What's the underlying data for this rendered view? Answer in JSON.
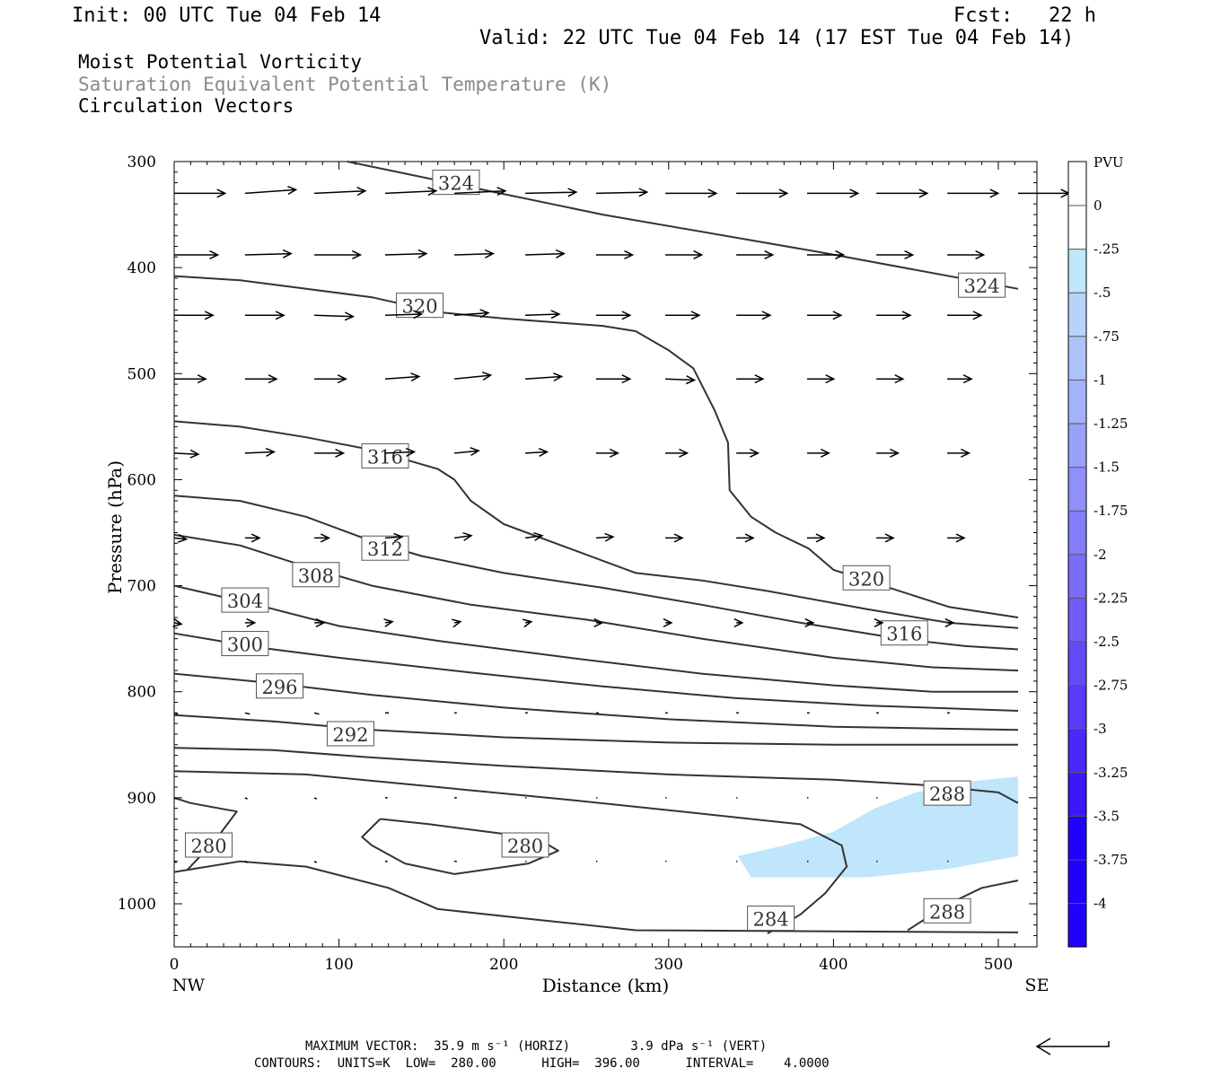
{
  "header": {
    "init": "Init: 00 UTC Tue 04 Feb 14",
    "fcst": "Fcst:   22 h",
    "valid": "Valid: 22 UTC Tue 04 Feb 14 (17 EST Tue 04 Feb 14)",
    "fields": [
      "Moist Potential Vorticity",
      "Saturation Equivalent Potential Temperature (K)",
      "Circulation Vectors"
    ]
  },
  "footer": {
    "max_vector": "MAXIMUM VECTOR:  35.9 m s⁻¹ (HORIZ)        3.9 dPa s⁻¹ (VERT)",
    "contours": "CONTOURS:  UNITS=K  LOW=  280.00      HIGH=  396.00      INTERVAL=    4.0000"
  },
  "colors": {
    "contour": "#333333",
    "pv_fill": "#bfe6fa",
    "scale": [
      "#ffffff",
      "#ffffff",
      "#bfe6fa",
      "#b6d4fa",
      "#adc3fa",
      "#a4b2fa",
      "#9aa1fa",
      "#8f90fa",
      "#847efa",
      "#7a6dfa",
      "#6f5cfa",
      "#644bfa",
      "#583afa",
      "#4b28fa",
      "#3d16fa",
      "#2000ff"
    ]
  },
  "chart_data": {
    "type": "cross-section contour",
    "xlabel": "Distance (km)",
    "ylabel": "Pressure (hPa)",
    "xlim": [
      0,
      512
    ],
    "ylim": [
      300,
      1030
    ],
    "y_inverted": true,
    "x_ticks": [
      0,
      100,
      200,
      300,
      400,
      500
    ],
    "y_ticks": [
      300,
      400,
      500,
      600,
      700,
      800,
      900,
      1000
    ],
    "x_end_labels": {
      "left": "NW",
      "right": "SE"
    },
    "colorbar": {
      "title": "PVU",
      "labels": [
        "0",
        "-.25",
        "-.5",
        "-.75",
        "-1",
        "-1.25",
        "-1.5",
        "-1.75",
        "-2",
        "-2.25",
        "-2.5",
        "-2.75",
        "-3",
        "-3.25",
        "-3.5",
        "-3.75",
        "-4"
      ]
    },
    "contour_units": "K",
    "contours": [
      {
        "level": 324,
        "points": [
          [
            105,
            300
          ],
          [
            260,
            350
          ],
          [
            390,
            385
          ],
          [
            512,
            420
          ]
        ]
      },
      {
        "level": 320,
        "points": [
          [
            0,
            408
          ],
          [
            40,
            412
          ],
          [
            80,
            420
          ],
          [
            120,
            428
          ],
          [
            160,
            442
          ],
          [
            200,
            448
          ],
          [
            260,
            455
          ],
          [
            280,
            460
          ],
          [
            300,
            478
          ],
          [
            315,
            495
          ],
          [
            328,
            535
          ],
          [
            336,
            565
          ],
          [
            337,
            610
          ],
          [
            350,
            635
          ],
          [
            365,
            650
          ],
          [
            385,
            665
          ],
          [
            400,
            685
          ],
          [
            430,
            700
          ],
          [
            470,
            720
          ],
          [
            512,
            730
          ]
        ]
      },
      {
        "level": 316,
        "points": [
          [
            0,
            545
          ],
          [
            40,
            550
          ],
          [
            80,
            560
          ],
          [
            120,
            572
          ],
          [
            160,
            590
          ],
          [
            170,
            600
          ],
          [
            180,
            620
          ],
          [
            200,
            642
          ],
          [
            240,
            665
          ],
          [
            280,
            688
          ],
          [
            320,
            695
          ],
          [
            360,
            705
          ],
          [
            420,
            722
          ],
          [
            470,
            735
          ],
          [
            512,
            740
          ]
        ]
      },
      {
        "level": 312,
        "points": [
          [
            0,
            615
          ],
          [
            40,
            620
          ],
          [
            80,
            635
          ],
          [
            120,
            658
          ],
          [
            150,
            672
          ],
          [
            200,
            688
          ],
          [
            260,
            702
          ],
          [
            320,
            718
          ],
          [
            380,
            735
          ],
          [
            440,
            750
          ],
          [
            480,
            757
          ],
          [
            512,
            760
          ]
        ]
      },
      {
        "level": 308,
        "points": [
          [
            0,
            652
          ],
          [
            40,
            662
          ],
          [
            80,
            682
          ],
          [
            120,
            700
          ],
          [
            180,
            718
          ],
          [
            250,
            732
          ],
          [
            320,
            750
          ],
          [
            400,
            768
          ],
          [
            460,
            777
          ],
          [
            512,
            780
          ]
        ]
      },
      {
        "level": 304,
        "points": [
          [
            0,
            700
          ],
          [
            50,
            718
          ],
          [
            100,
            738
          ],
          [
            160,
            752
          ],
          [
            240,
            768
          ],
          [
            320,
            783
          ],
          [
            400,
            794
          ],
          [
            460,
            800
          ],
          [
            512,
            800
          ]
        ]
      },
      {
        "level": 300,
        "points": [
          [
            0,
            745
          ],
          [
            50,
            758
          ],
          [
            100,
            768
          ],
          [
            180,
            782
          ],
          [
            260,
            795
          ],
          [
            340,
            806
          ],
          [
            420,
            813
          ],
          [
            512,
            818
          ]
        ]
      },
      {
        "level": 296,
        "points": [
          [
            0,
            783
          ],
          [
            60,
            792
          ],
          [
            120,
            803
          ],
          [
            200,
            815
          ],
          [
            300,
            826
          ],
          [
            400,
            833
          ],
          [
            512,
            836
          ]
        ]
      },
      {
        "level": 292,
        "points": [
          [
            0,
            822
          ],
          [
            60,
            828
          ],
          [
            120,
            836
          ],
          [
            200,
            843
          ],
          [
            300,
            848
          ],
          [
            400,
            850
          ],
          [
            512,
            850
          ]
        ]
      },
      {
        "level": 288,
        "points": [
          [
            0,
            853
          ],
          [
            60,
            855
          ],
          [
            120,
            862
          ],
          [
            200,
            870
          ],
          [
            300,
            878
          ],
          [
            400,
            883
          ],
          [
            455,
            888
          ],
          [
            500,
            895
          ],
          [
            512,
            905
          ]
        ]
      },
      {
        "level": 288,
        "points": [
          [
            445,
            1025
          ],
          [
            470,
            1000
          ],
          [
            490,
            985
          ],
          [
            512,
            978
          ]
        ]
      },
      {
        "level": 284,
        "points": [
          [
            0,
            875
          ],
          [
            80,
            878
          ],
          [
            160,
            890
          ],
          [
            240,
            902
          ],
          [
            320,
            915
          ],
          [
            380,
            925
          ],
          [
            405,
            945
          ],
          [
            408,
            965
          ],
          [
            395,
            990
          ],
          [
            380,
            1010
          ],
          [
            360,
            1028
          ]
        ]
      },
      {
        "level": 280,
        "points": [
          [
            0,
            970
          ],
          [
            40,
            960
          ],
          [
            80,
            965
          ],
          [
            130,
            985
          ],
          [
            160,
            1005
          ],
          [
            220,
            1015
          ],
          [
            280,
            1025
          ],
          [
            512,
            1027
          ]
        ]
      },
      {
        "level": 280,
        "points": [
          [
            0,
            900
          ],
          [
            10,
            905
          ],
          [
            38,
            913
          ],
          [
            25,
            940
          ],
          [
            8,
            968
          ]
        ]
      },
      {
        "level": 280,
        "points": [
          [
            125,
            920
          ],
          [
            155,
            925
          ],
          [
            190,
            932
          ],
          [
            220,
            938
          ],
          [
            233,
            950
          ],
          [
            215,
            962
          ],
          [
            170,
            972
          ],
          [
            140,
            962
          ],
          [
            120,
            945
          ],
          [
            114,
            937
          ],
          [
            125,
            920
          ]
        ]
      }
    ],
    "contour_labels": [
      {
        "text": "324",
        "x": 171,
        "y": 320
      },
      {
        "text": "324",
        "x": 490,
        "y": 417
      },
      {
        "text": "320",
        "x": 149,
        "y": 436
      },
      {
        "text": "320",
        "x": 420,
        "y": 693
      },
      {
        "text": "316",
        "x": 128,
        "y": 578
      },
      {
        "text": "316",
        "x": 443,
        "y": 745
      },
      {
        "text": "312",
        "x": 128,
        "y": 665
      },
      {
        "text": "308",
        "x": 86,
        "y": 690
      },
      {
        "text": "304",
        "x": 43,
        "y": 714
      },
      {
        "text": "300",
        "x": 43,
        "y": 755
      },
      {
        "text": "296",
        "x": 64,
        "y": 795
      },
      {
        "text": "292",
        "x": 107,
        "y": 840
      },
      {
        "text": "288",
        "x": 469,
        "y": 896
      },
      {
        "text": "288",
        "x": 469,
        "y": 1007
      },
      {
        "text": "284",
        "x": 362,
        "y": 1014
      },
      {
        "text": "280",
        "x": 21,
        "y": 945
      },
      {
        "text": "280",
        "x": 213,
        "y": 945
      }
    ],
    "pv_negative_region": {
      "range_pvu": [
        -0.25,
        0
      ],
      "points": [
        [
          342,
          955
        ],
        [
          370,
          945
        ],
        [
          400,
          932
        ],
        [
          425,
          910
        ],
        [
          450,
          895
        ],
        [
          480,
          885
        ],
        [
          512,
          880
        ],
        [
          512,
          955
        ],
        [
          470,
          967
        ],
        [
          420,
          975
        ],
        [
          350,
          975
        ],
        [
          342,
          955
        ]
      ]
    },
    "vector_rows": [
      {
        "p": 330,
        "x": [
          0,
          43,
          85,
          128,
          170,
          213,
          256,
          298,
          341,
          384,
          426,
          469,
          512
        ],
        "u": [
          42,
          42,
          42,
          42,
          42,
          42,
          42,
          42,
          42,
          42,
          42,
          42,
          42
        ],
        "w": [
          0,
          -3,
          -2,
          -2,
          -2,
          -1,
          -1,
          0,
          0,
          0,
          0,
          0,
          0
        ]
      },
      {
        "p": 388,
        "x": [
          0,
          43,
          85,
          128,
          170,
          213,
          256,
          298,
          341,
          384,
          426,
          469
        ],
        "u": [
          36,
          38,
          38,
          34,
          32,
          32,
          30,
          30,
          30,
          30,
          30,
          30
        ],
        "w": [
          0,
          -1,
          0,
          -1,
          -1,
          -1,
          0,
          0,
          0,
          0,
          0,
          0
        ]
      },
      {
        "p": 445,
        "x": [
          0,
          43,
          85,
          128,
          170,
          213,
          256,
          298,
          341,
          384,
          426,
          469
        ],
        "u": [
          32,
          32,
          32,
          30,
          28,
          28,
          28,
          28,
          28,
          28,
          28,
          28
        ],
        "w": [
          0,
          0,
          1,
          -1,
          -2,
          -1,
          0,
          0,
          0,
          0,
          0,
          0
        ]
      },
      {
        "p": 505,
        "x": [
          0,
          43,
          85,
          128,
          170,
          213,
          256,
          298,
          341,
          384,
          426,
          469
        ],
        "u": [
          26,
          26,
          26,
          28,
          30,
          30,
          28,
          24,
          22,
          22,
          22,
          20
        ],
        "w": [
          0,
          0,
          0,
          -2,
          -3,
          -2,
          0,
          1,
          0,
          0,
          0,
          0
        ]
      },
      {
        "p": 575,
        "x": [
          0,
          43,
          85,
          128,
          170,
          213,
          256,
          298,
          341,
          384,
          426,
          469
        ],
        "u": [
          20,
          24,
          24,
          24,
          20,
          18,
          18,
          18,
          18,
          18,
          18,
          18
        ],
        "w": [
          1,
          -1,
          0,
          -1,
          -2,
          -1,
          0,
          0,
          0,
          0,
          0,
          0
        ]
      },
      {
        "p": 655,
        "x": [
          0,
          43,
          85,
          128,
          170,
          213,
          256,
          298,
          341,
          384,
          426,
          469
        ],
        "u": [
          10,
          12,
          12,
          14,
          14,
          14,
          14,
          14,
          14,
          14,
          14,
          14
        ],
        "w": [
          1,
          0,
          0,
          -1,
          -2,
          -2,
          -1,
          0,
          0,
          0,
          0,
          0
        ]
      },
      {
        "p": 735,
        "x": [
          0,
          43,
          85,
          128,
          170,
          213,
          256,
          298,
          341,
          384,
          426,
          469
        ],
        "u": [
          6,
          8,
          8,
          6,
          5,
          5,
          5,
          5,
          5,
          5,
          5,
          5
        ],
        "w": [
          1,
          0,
          0,
          -1,
          -1,
          -1,
          0,
          0,
          0,
          0,
          0,
          0
        ]
      },
      {
        "p": 820,
        "x": [
          0,
          43,
          85,
          128,
          170,
          213,
          256,
          298,
          341,
          384,
          426,
          469
        ],
        "u": [
          3,
          4,
          4,
          3,
          2,
          2,
          2,
          2,
          2,
          2,
          2,
          2
        ],
        "w": [
          1,
          1,
          1,
          0,
          0,
          0,
          0,
          0,
          0,
          0,
          0,
          0
        ]
      },
      {
        "p": 900,
        "x": [
          0,
          43,
          85,
          128,
          170,
          213,
          256,
          298,
          341,
          384,
          426,
          469
        ],
        "u": [
          2,
          2,
          2,
          2,
          2,
          1,
          1,
          1,
          1,
          1,
          1,
          1
        ],
        "w": [
          1,
          1,
          1,
          0,
          0,
          0,
          0,
          0,
          0,
          0,
          0,
          0
        ]
      },
      {
        "p": 960,
        "x": [
          0,
          43,
          85,
          128,
          170,
          213,
          256,
          298,
          341,
          384,
          426,
          469
        ],
        "u": [
          2,
          2,
          2,
          2,
          2,
          1,
          1,
          1,
          1,
          1,
          1,
          1
        ],
        "w": [
          1,
          1,
          1,
          0,
          0,
          0,
          0,
          0,
          0,
          0,
          0,
          0
        ]
      }
    ],
    "reference_vector": {
      "direction": "left"
    }
  }
}
